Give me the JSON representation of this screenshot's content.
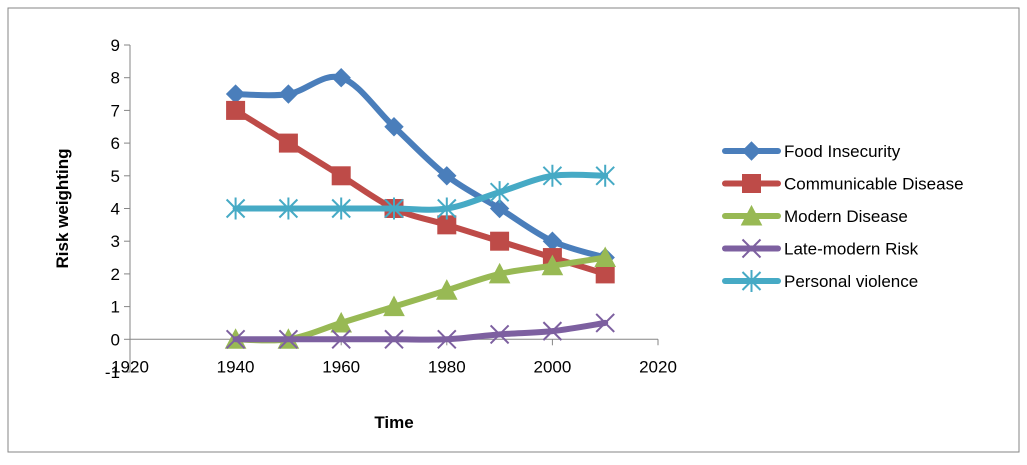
{
  "chart_data": {
    "type": "line",
    "title": "",
    "xlabel": "Time",
    "ylabel": "Risk weighting",
    "xlim": [
      1920,
      2020
    ],
    "ylim": [
      -1,
      9
    ],
    "x_ticks": [
      1920,
      1940,
      1960,
      1980,
      2000,
      2020
    ],
    "y_ticks": [
      -1,
      0,
      1,
      2,
      3,
      4,
      5,
      6,
      7,
      8,
      9
    ],
    "grid": false,
    "legend_position": "right",
    "x": [
      1940,
      1950,
      1960,
      1970,
      1980,
      1990,
      2000,
      2010
    ],
    "series": [
      {
        "name": "Food Insecurity",
        "color": "#4a7ebb",
        "marker": "diamond",
        "values": [
          7.5,
          7.5,
          8,
          6.5,
          5,
          4,
          3,
          2.5
        ]
      },
      {
        "name": "Communicable Disease",
        "color": "#be4b48",
        "marker": "square",
        "values": [
          7,
          6,
          5,
          4,
          3.5,
          3,
          2.5,
          2
        ]
      },
      {
        "name": "Modern Disease",
        "color": "#98b954",
        "marker": "triangle",
        "values": [
          0,
          0,
          0.5,
          1,
          1.5,
          2,
          2.25,
          2.5
        ]
      },
      {
        "name": "Late-modern Risk",
        "color": "#7d60a0",
        "marker": "x",
        "values": [
          0,
          0,
          0,
          0,
          0,
          0.15,
          0.25,
          0.5
        ]
      },
      {
        "name": "Personal violence",
        "color": "#46aac5",
        "marker": "star",
        "values": [
          4,
          4,
          4,
          4,
          4,
          4.5,
          5,
          5
        ]
      }
    ]
  }
}
